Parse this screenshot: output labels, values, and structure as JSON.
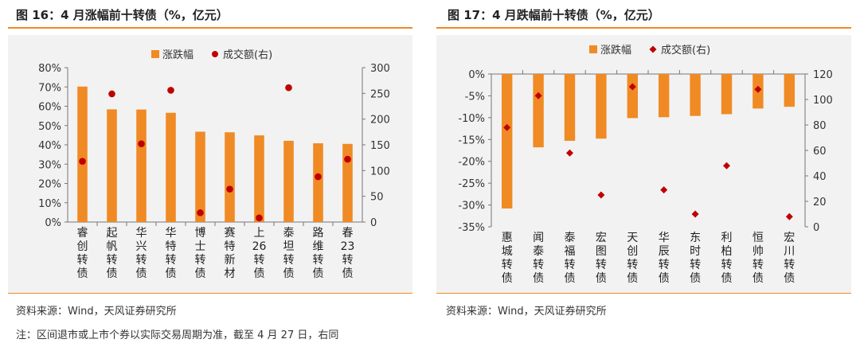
{
  "left": {
    "title": "图 16：4 月涨幅前十转债（%，亿元）",
    "source": "资料来源：Wind，天风证券研究所"
  },
  "right": {
    "title": "图 17：4 月跌幅前十转债（%，亿元）",
    "source": "资料来源：Wind，天风证券研究所"
  },
  "note": "注：区间退市或上市个券以实际交易周期为准，截至 4 月 27 日，右同",
  "colors": {
    "bar": "#f08a24",
    "marker": "#c00000",
    "accent_rule": "#f08a24"
  },
  "chart_data": [
    {
      "type": "bar",
      "categories": [
        "睿创转债",
        "起帆转债",
        "华兴转债",
        "华特转债",
        "博士转债",
        "赛特新材",
        "上26转债",
        "泰坦转债",
        "路维转债",
        "春23转债"
      ],
      "series": [
        {
          "name": "涨跌幅",
          "axis": "left",
          "kind": "bar",
          "values": [
            70.2,
            58.4,
            58.3,
            56.6,
            46.8,
            46.5,
            44.9,
            42.1,
            40.8,
            40.5
          ]
        },
        {
          "name": "成交额(右)",
          "axis": "right",
          "kind": "scatter",
          "values": [
            118,
            249,
            152,
            256,
            18,
            64,
            8,
            261,
            88,
            122
          ]
        }
      ],
      "y_left": {
        "min": 0,
        "max": 80,
        "step": 10,
        "ticks": [
          "0%",
          "10%",
          "20%",
          "30%",
          "40%",
          "50%",
          "60%",
          "70%",
          "80%"
        ]
      },
      "y_right": {
        "min": 0,
        "max": 300,
        "step": 50,
        "ticks": [
          "0",
          "50",
          "100",
          "150",
          "200",
          "250",
          "300"
        ]
      },
      "legend_position": "top-center",
      "grid": false
    },
    {
      "type": "bar",
      "categories": [
        "惠城转债",
        "闻泰转债",
        "泰福转债",
        "宏图转债",
        "天创转债",
        "华辰转债",
        "东时转债",
        "利柏转债",
        "恒帅转债",
        "宏川转债"
      ],
      "series": [
        {
          "name": "涨跌幅",
          "axis": "left",
          "kind": "bar",
          "values": [
            -30.8,
            -16.8,
            -15.3,
            -14.8,
            -10.1,
            -9.9,
            -9.6,
            -9.2,
            -7.9,
            -7.5
          ]
        },
        {
          "name": "成交额(右)",
          "axis": "right",
          "kind": "scatter",
          "values": [
            78,
            103,
            58,
            25,
            110,
            29,
            10,
            48,
            108,
            8
          ]
        }
      ],
      "y_left": {
        "min": -35,
        "max": 0,
        "step": 5,
        "ticks": [
          "-35%",
          "-30%",
          "-25%",
          "-20%",
          "-15%",
          "-10%",
          "-5%",
          "0%"
        ]
      },
      "y_right": {
        "min": 0,
        "max": 120,
        "step": 20,
        "ticks": [
          "0",
          "20",
          "40",
          "60",
          "80",
          "100",
          "120"
        ]
      },
      "legend_position": "top-center",
      "grid": false
    }
  ]
}
